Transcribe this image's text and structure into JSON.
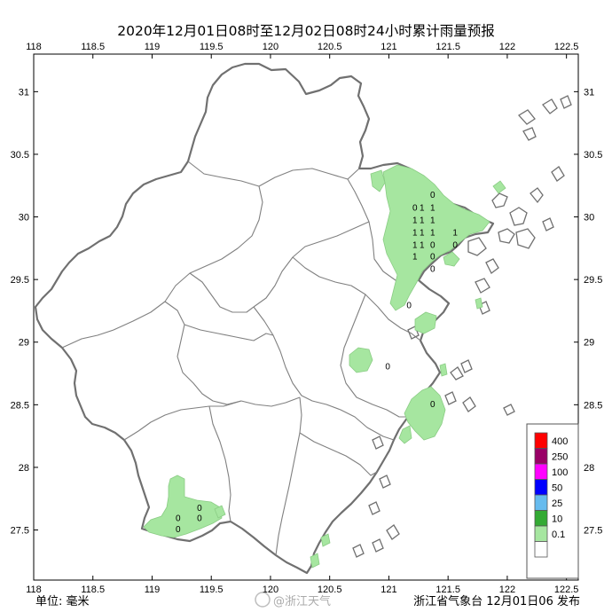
{
  "title": "2020年12月01日08时至12月02日08时24小时累计雨量预报",
  "map": {
    "lon_ticks": [
      "118",
      "118.5",
      "119",
      "119.5",
      "120",
      "120.5",
      "121",
      "121.5",
      "122",
      "122.5"
    ],
    "lat_ticks": [
      "31",
      "30.5",
      "30",
      "29.5",
      "29",
      "28.5",
      "28",
      "27.5"
    ],
    "lon_range": [
      118,
      122.6
    ],
    "lat_range": [
      27.1,
      31.3
    ]
  },
  "legend": {
    "items": [
      {
        "label": "400",
        "color": "#ff0000"
      },
      {
        "label": "250",
        "color": "#990066"
      },
      {
        "label": "100",
        "color": "#ff00ff"
      },
      {
        "label": "50",
        "color": "#0000ff"
      },
      {
        "label": "25",
        "color": "#66bbee"
      },
      {
        "label": "10",
        "color": "#33aa33"
      },
      {
        "label": "0.1",
        "color": "#a6e6a0"
      },
      {
        "label": "",
        "color": "#ffffff"
      }
    ]
  },
  "rain_values": [
    {
      "lon": 121.37,
      "lat": 30.18,
      "value": "0"
    },
    {
      "lon": 121.22,
      "lat": 30.08,
      "value": "0"
    },
    {
      "lon": 121.28,
      "lat": 30.08,
      "value": "1"
    },
    {
      "lon": 121.37,
      "lat": 30.08,
      "value": "1"
    },
    {
      "lon": 121.22,
      "lat": 29.98,
      "value": "1"
    },
    {
      "lon": 121.28,
      "lat": 29.98,
      "value": "1"
    },
    {
      "lon": 121.37,
      "lat": 29.98,
      "value": "1"
    },
    {
      "lon": 121.22,
      "lat": 29.88,
      "value": "1"
    },
    {
      "lon": 121.28,
      "lat": 29.88,
      "value": "1"
    },
    {
      "lon": 121.37,
      "lat": 29.88,
      "value": "1"
    },
    {
      "lon": 121.56,
      "lat": 29.88,
      "value": "1"
    },
    {
      "lon": 121.22,
      "lat": 29.78,
      "value": "1"
    },
    {
      "lon": 121.28,
      "lat": 29.78,
      "value": "1"
    },
    {
      "lon": 121.37,
      "lat": 29.78,
      "value": "0"
    },
    {
      "lon": 121.56,
      "lat": 29.78,
      "value": "0"
    },
    {
      "lon": 121.22,
      "lat": 29.69,
      "value": "1"
    },
    {
      "lon": 121.37,
      "lat": 29.69,
      "value": "0"
    },
    {
      "lon": 121.37,
      "lat": 29.59,
      "value": "0"
    },
    {
      "lon": 121.17,
      "lat": 29.3,
      "value": "0"
    },
    {
      "lon": 120.99,
      "lat": 28.81,
      "value": "0"
    },
    {
      "lon": 121.37,
      "lat": 28.51,
      "value": "0"
    },
    {
      "lon": 119.4,
      "lat": 27.68,
      "value": "0"
    },
    {
      "lon": 119.22,
      "lat": 27.6,
      "value": "0"
    },
    {
      "lon": 119.4,
      "lat": 27.6,
      "value": "0"
    },
    {
      "lon": 119.22,
      "lat": 27.51,
      "value": "0"
    }
  ],
  "footer": {
    "unit_label": "单位:  毫米",
    "watermark": "@浙江天气",
    "issuer": "浙江省气象台 12月01日06 发布"
  }
}
